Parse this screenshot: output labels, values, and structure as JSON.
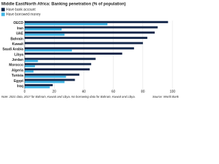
{
  "chart_data": {
    "type": "bar",
    "orientation": "horizontal",
    "title": "Middle East/North Africa: Banking penetration (% of population)",
    "categories": [
      "OECD",
      "Iran",
      "UAE",
      "Bahrain",
      "Kuwait",
      "Saudi Arabia",
      "Libya",
      "Jordan",
      "Morocco",
      "Algeria",
      "Tunisia",
      "Egypt",
      "Iraq"
    ],
    "series": [
      {
        "name": "Have bank account",
        "color": "#15284b",
        "values": [
          97,
          90,
          88,
          83,
          80,
          74,
          66,
          48,
          45,
          44,
          37,
          34,
          19
        ]
      },
      {
        "name": "Have borrowed money",
        "color": "#41b6e6",
        "values": [
          56,
          25,
          27,
          null,
          null,
          32,
          null,
          9,
          7,
          6,
          28,
          27,
          17
        ]
      }
    ],
    "xlim": [
      0,
      100
    ],
    "xticks": [
      0,
      20,
      40,
      60,
      80,
      100
    ],
    "grid": true,
    "note": "Note: 2021 data, 2017 for Bahrain, Kuwait and Libya. No borrowing data for Bahrain, Kuwait and Libya.",
    "source": "Source: World Bank"
  }
}
